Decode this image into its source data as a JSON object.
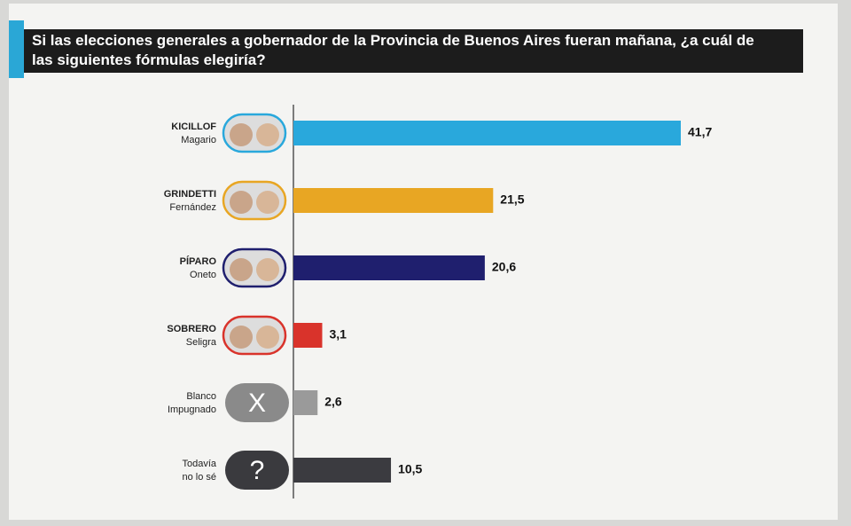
{
  "chart_data": {
    "type": "hbar",
    "title": "Si las elecciones generales a gobernador de la Provincia de Buenos Aires fueran mañana, ¿a cuál de las siguientes fórmulas elegiría?",
    "categories": [
      [
        "KICILLOF",
        "Magario"
      ],
      [
        "GRINDETTI",
        "Fernández"
      ],
      [
        "PÍPARO",
        "Oneto"
      ],
      [
        "SOBRERO",
        "Seligra"
      ],
      [
        "Blanco",
        "Impugnado"
      ],
      [
        "Todavía",
        "no lo sé"
      ]
    ],
    "bold_first_line": [
      true,
      true,
      true,
      true,
      false,
      false
    ],
    "values": [
      41.7,
      21.5,
      20.6,
      3.1,
      2.6,
      10.5
    ],
    "value_labels": [
      "41,7",
      "21,5",
      "20,6",
      "3,1",
      "2,6",
      "10,5"
    ],
    "colors": [
      "#29a8dc",
      "#e8a623",
      "#1f1f6e",
      "#d9332b",
      "#9a9a9a",
      "#3b3b40"
    ],
    "icon_symbols": {
      "4": "X",
      "5": "?"
    }
  }
}
